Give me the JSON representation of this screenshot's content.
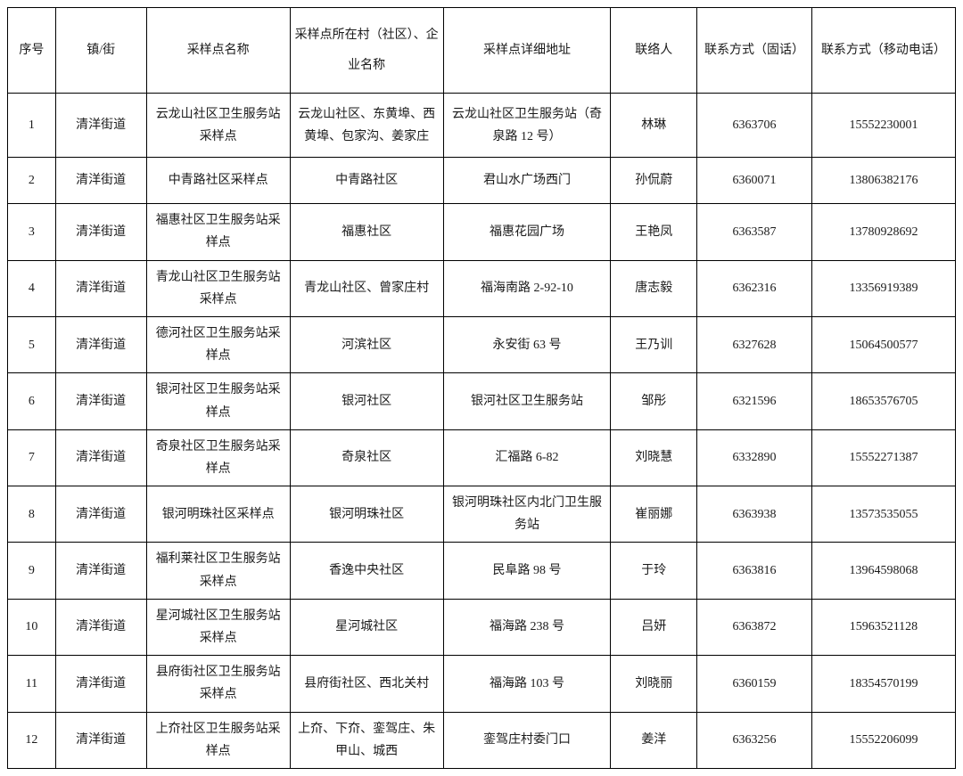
{
  "table": {
    "columns": [
      {
        "key": "seq",
        "label": "序号",
        "class": "col-seq"
      },
      {
        "key": "town",
        "label": "镇/街",
        "class": "col-town"
      },
      {
        "key": "name",
        "label": "采样点名称",
        "class": "col-name"
      },
      {
        "key": "village",
        "label": "采样点所在村（社区）、企业名称",
        "class": "col-village"
      },
      {
        "key": "address",
        "label": "采样点详细地址",
        "class": "col-address"
      },
      {
        "key": "contact",
        "label": "联络人",
        "class": "col-contact"
      },
      {
        "key": "landline",
        "label": "联系方式（固话）",
        "class": "col-landline"
      },
      {
        "key": "mobile",
        "label": "联系方式（移动电话）",
        "class": "col-mobile"
      }
    ],
    "rows": [
      {
        "seq": "1",
        "town": "清洋街道",
        "name": "云龙山社区卫生服务站采样点",
        "village": "云龙山社区、东黄埠、西黄埠、包家沟、姜家庄",
        "address": "云龙山社区卫生服务站（奇泉路 12 号）",
        "contact": "林琳",
        "landline": "6363706",
        "mobile": "15552230001",
        "tall": true
      },
      {
        "seq": "2",
        "town": "清洋街道",
        "name": "中青路社区采样点",
        "village": "中青路社区",
        "address": "君山水广场西门",
        "contact": "孙侃蔚",
        "landline": "6360071",
        "mobile": "13806382176"
      },
      {
        "seq": "3",
        "town": "清洋街道",
        "name": "福惠社区卫生服务站采样点",
        "village": "福惠社区",
        "address": "福惠花园广场",
        "contact": "王艳凤",
        "landline": "6363587",
        "mobile": "13780928692"
      },
      {
        "seq": "4",
        "town": "清洋街道",
        "name": "青龙山社区卫生服务站采样点",
        "village": "青龙山社区、曾家庄村",
        "address": "福海南路 2-92-10",
        "contact": "唐志毅",
        "landline": "6362316",
        "mobile": "13356919389"
      },
      {
        "seq": "5",
        "town": "清洋街道",
        "name": "德河社区卫生服务站采样点",
        "village": "河滨社区",
        "address": "永安街 63 号",
        "contact": "王乃训",
        "landline": "6327628",
        "mobile": "15064500577"
      },
      {
        "seq": "6",
        "town": "清洋街道",
        "name": "银河社区卫生服务站采样点",
        "village": "银河社区",
        "address": "银河社区卫生服务站",
        "contact": "邹彤",
        "landline": "6321596",
        "mobile": "18653576705"
      },
      {
        "seq": "7",
        "town": "清洋街道",
        "name": "奇泉社区卫生服务站采样点",
        "village": "奇泉社区",
        "address": "汇福路 6-82",
        "contact": "刘晓慧",
        "landline": "6332890",
        "mobile": "15552271387"
      },
      {
        "seq": "8",
        "town": "清洋街道",
        "name": "银河明珠社区采样点",
        "village": "银河明珠社区",
        "address": "银河明珠社区内北门卫生服务站",
        "contact": "崔丽娜",
        "landline": "6363938",
        "mobile": "13573535055"
      },
      {
        "seq": "9",
        "town": "清洋街道",
        "name": "福利莱社区卫生服务站采样点",
        "village": "香逸中央社区",
        "address": "民阜路 98 号",
        "contact": "于玲",
        "landline": "6363816",
        "mobile": "13964598068"
      },
      {
        "seq": "10",
        "town": "清洋街道",
        "name": "星河城社区卫生服务站采样点",
        "village": "星河城社区",
        "address": "福海路 238 号",
        "contact": "吕妍",
        "landline": "6363872",
        "mobile": "15963521128"
      },
      {
        "seq": "11",
        "town": "清洋街道",
        "name": "县府街社区卫生服务站采样点",
        "village": "县府街社区、西北关村",
        "address": "福海路 103 号",
        "contact": "刘晓丽",
        "landline": "6360159",
        "mobile": "18354570199"
      },
      {
        "seq": "12",
        "town": "清洋街道",
        "name": "上夼社区卫生服务站采样点",
        "village": "上夼、下夼、銮驾庄、朱甲山、城西",
        "address": "銮驾庄村委门口",
        "contact": "姜洋",
        "landline": "6363256",
        "mobile": "15552206099"
      }
    ],
    "styling": {
      "border_color": "#000000",
      "background_color": "#ffffff",
      "text_color": "#1a1a1a",
      "font_family": "SimSun",
      "header_fontsize": 14,
      "body_fontsize": 14,
      "header_row_height": 90,
      "body_row_height": 52
    }
  }
}
